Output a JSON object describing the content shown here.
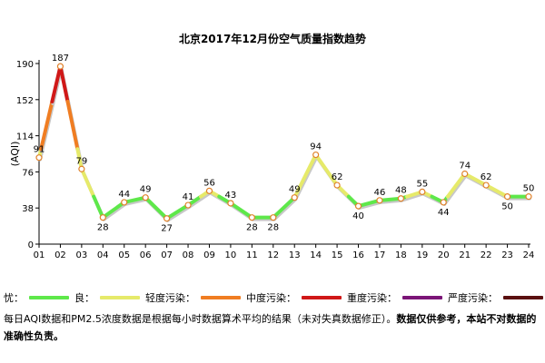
{
  "chart_data": {
    "type": "line",
    "title": "北京2017年12月份空气质量指数趋势",
    "ylabel": "(AQI)",
    "xlabel": "",
    "categories": [
      "01",
      "02",
      "03",
      "04",
      "05",
      "06",
      "07",
      "08",
      "09",
      "10",
      "11",
      "12",
      "13",
      "14",
      "15",
      "16",
      "17",
      "18",
      "19",
      "20",
      "21",
      "22",
      "23",
      "24"
    ],
    "values": [
      91,
      187,
      79,
      28,
      44,
      49,
      27,
      41,
      56,
      43,
      28,
      28,
      49,
      94,
      62,
      40,
      46,
      48,
      55,
      44,
      74,
      62,
      50,
      50
    ],
    "yticks": [
      0,
      38,
      76,
      114,
      152,
      190
    ],
    "ylim": [
      0,
      190
    ],
    "grid": false,
    "levels": [
      {
        "name": "优",
        "color": "#5ee84a",
        "max": 50
      },
      {
        "name": "良",
        "color": "#e6ea6a",
        "max": 100
      },
      {
        "name": "轻度污染",
        "color": "#f07d22",
        "max": 150
      },
      {
        "name": "中度污染",
        "color": "#d01818",
        "max": 200
      },
      {
        "name": "重度污染",
        "color": "#7b1577",
        "max": 300
      },
      {
        "name": "严重污染",
        "color": "#5a1010",
        "max": 500
      }
    ],
    "legend_placement": "bottom"
  },
  "legend": {
    "lead_label": "忧：",
    "items": [
      {
        "label": "良：",
        "color": "#5ee84a"
      },
      {
        "label": "轻度污染：",
        "color": "#e6ea6a"
      },
      {
        "label": "中度污染：",
        "color": "#f07d22"
      },
      {
        "label": "重度污染：",
        "color": "#d01818"
      },
      {
        "label": "严度污染：",
        "color": "#7b1577"
      },
      {
        "label": "",
        "color": "#5a1010"
      }
    ]
  },
  "note": {
    "normal": "每日AQI数据和PM2.5浓度数据是根据每小时数据算术平均的结果（未对失真数据修正）。",
    "bold": "数据仅供参考，本站不对数据的准确性负责。"
  }
}
